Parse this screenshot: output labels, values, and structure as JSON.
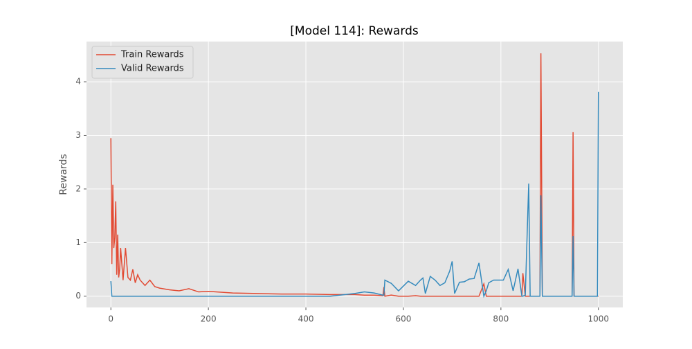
{
  "chart_data": {
    "type": "line",
    "title": "[Model 114]: Rewards",
    "y_label": "Rewards",
    "x": [
      0,
      2,
      4,
      6,
      8,
      10,
      12,
      14,
      16,
      18,
      20,
      25,
      30,
      35,
      40,
      45,
      50,
      55,
      60,
      70,
      80,
      90,
      100,
      120,
      140,
      160,
      180,
      200,
      250,
      300,
      350,
      400,
      450,
      500,
      520,
      540,
      558,
      560,
      562,
      575,
      590,
      610,
      625,
      635,
      640,
      645,
      655,
      665,
      675,
      685,
      695,
      700,
      705,
      715,
      725,
      735,
      745,
      755,
      765,
      770,
      775,
      785,
      795,
      805,
      815,
      825,
      835,
      843,
      845,
      850,
      857,
      860,
      865,
      875,
      880,
      882,
      885,
      895,
      910,
      930,
      946,
      948,
      950,
      960,
      980,
      995,
      998,
      1000
    ],
    "series": [
      {
        "name": "Train Rewards",
        "color": "#E24A33",
        "values": [
          2.95,
          0.6,
          2.08,
          0.9,
          1.1,
          1.77,
          0.4,
          1.15,
          0.35,
          0.5,
          0.9,
          0.3,
          0.9,
          0.35,
          0.3,
          0.5,
          0.25,
          0.4,
          0.3,
          0.2,
          0.3,
          0.18,
          0.15,
          0.12,
          0.1,
          0.14,
          0.08,
          0.09,
          0.06,
          0.05,
          0.04,
          0.04,
          0.03,
          0.03,
          0.02,
          0.02,
          0.01,
          0.17,
          0,
          0.02,
          0,
          0,
          0.01,
          0,
          0,
          0,
          0,
          0,
          0,
          0,
          0,
          0,
          0,
          0,
          0,
          0,
          0,
          0,
          0.23,
          0,
          0,
          0,
          0,
          0,
          0,
          0,
          0,
          0,
          0.43,
          0,
          0,
          0,
          0,
          0,
          0,
          4.53,
          0,
          0,
          0,
          0,
          0,
          3.06,
          0,
          0,
          0,
          0,
          0,
          0
        ]
      },
      {
        "name": "Valid Rewards",
        "color": "#348ABD",
        "values": [
          0.28,
          0,
          0,
          0,
          0,
          0,
          0,
          0,
          0,
          0,
          0,
          0,
          0,
          0,
          0,
          0,
          0,
          0,
          0,
          0,
          0,
          0,
          0,
          0,
          0,
          0,
          0,
          0,
          0,
          0,
          0,
          0,
          0,
          0.05,
          0.08,
          0.06,
          0.02,
          0.02,
          0.3,
          0.24,
          0.1,
          0.28,
          0.2,
          0.3,
          0.34,
          0.05,
          0.37,
          0.3,
          0.2,
          0.25,
          0.47,
          0.65,
          0.05,
          0.26,
          0.27,
          0.32,
          0.33,
          0.62,
          0,
          0.1,
          0.25,
          0.3,
          0.3,
          0.3,
          0.5,
          0.1,
          0.51,
          0,
          0,
          0.02,
          2.1,
          0,
          0,
          0,
          0,
          1.88,
          0,
          0,
          0,
          0,
          0,
          1.12,
          0,
          0,
          0,
          0,
          0,
          3.81
        ]
      }
    ],
    "xlim": [
      -50,
      1050
    ],
    "ylim": [
      -0.21,
      4.75
    ],
    "xticks": [
      0,
      200,
      400,
      600,
      800,
      1000
    ],
    "yticks": [
      0,
      1,
      2,
      3,
      4
    ],
    "grid": true,
    "legend": "upper left"
  }
}
